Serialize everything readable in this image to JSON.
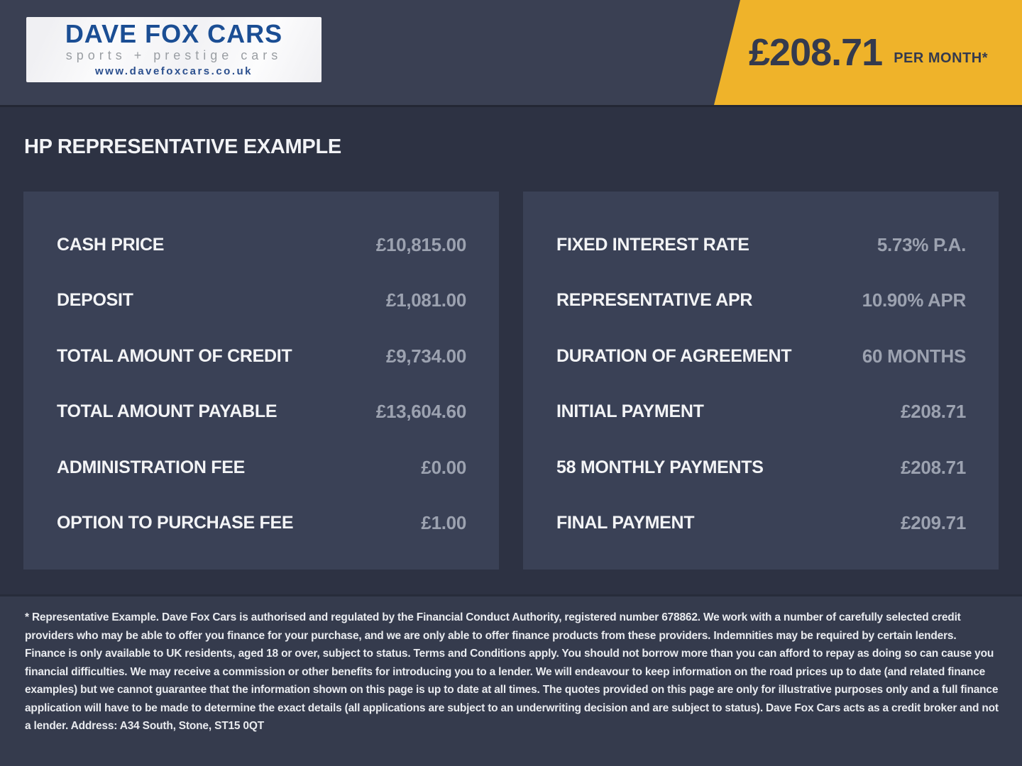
{
  "brand": {
    "name": "DAVE FOX CARS",
    "tagline": "sports + prestige cars",
    "website": "www.davefoxcars.co.uk"
  },
  "price_banner": {
    "amount": "£208.71",
    "period": "PER MONTH*"
  },
  "heading": "HP REPRESENTATIVE EXAMPLE",
  "finance": {
    "left_rows": [
      {
        "label": "CASH PRICE",
        "value": "£10,815.00"
      },
      {
        "label": "DEPOSIT",
        "value": "£1,081.00"
      },
      {
        "label": "TOTAL AMOUNT OF CREDIT",
        "value": "£9,734.00"
      },
      {
        "label": "TOTAL AMOUNT PAYABLE",
        "value": "£13,604.60"
      },
      {
        "label": "ADMINISTRATION FEE",
        "value": "£0.00"
      },
      {
        "label": "OPTION TO PURCHASE FEE",
        "value": "£1.00"
      }
    ],
    "right_rows": [
      {
        "label": "FIXED INTEREST RATE",
        "value": "5.73% P.A."
      },
      {
        "label": "REPRESENTATIVE APR",
        "value": "10.90% APR"
      },
      {
        "label": "DURATION OF AGREEMENT",
        "value": "60 MONTHS"
      },
      {
        "label": "INITIAL PAYMENT",
        "value": "£208.71"
      },
      {
        "label": "58 MONTHLY PAYMENTS",
        "value": "£208.71"
      },
      {
        "label": "FINAL PAYMENT",
        "value": "£209.71"
      }
    ]
  },
  "disclaimer": "* Representative Example. Dave Fox Cars is authorised and regulated by the Financial Conduct Authority, registered number 678862. We work with a number of carefully selected credit providers who may be able to offer you finance for your purchase, and we are only able to offer finance products from these providers. Indemnities may be required by certain lenders. Finance is only available to UK residents, aged 18 or over, subject to status. Terms and Conditions apply. You should not borrow more than you can afford to repay as doing so can cause you financial difficulties. We may receive a commission or other benefits for introducing you to a lender. We will endeavour to keep information on the road prices up to date (and related finance examples) but we cannot guarantee that the information shown on this page is up to date at all times. The quotes provided on this page are only for illustrative purposes only and a full finance application will have to be made to determine the exact details (all applications are subject to an underwriting decision and are subject to status). Dave Fox Cars acts as a credit broker and not a lender. Address: A34 South, Stone, ST15 0QT",
  "colors": {
    "header_bg": "#3A4053",
    "body_bg": "#2D3243",
    "panel_bg": "#3A4156",
    "footer_bg": "#353B4D",
    "accent_yellow": "#EFB32A",
    "navy_text_on_yellow": "#343A4E",
    "value_text": "#9CA2B0",
    "logo_blue": "#1B4E94"
  }
}
